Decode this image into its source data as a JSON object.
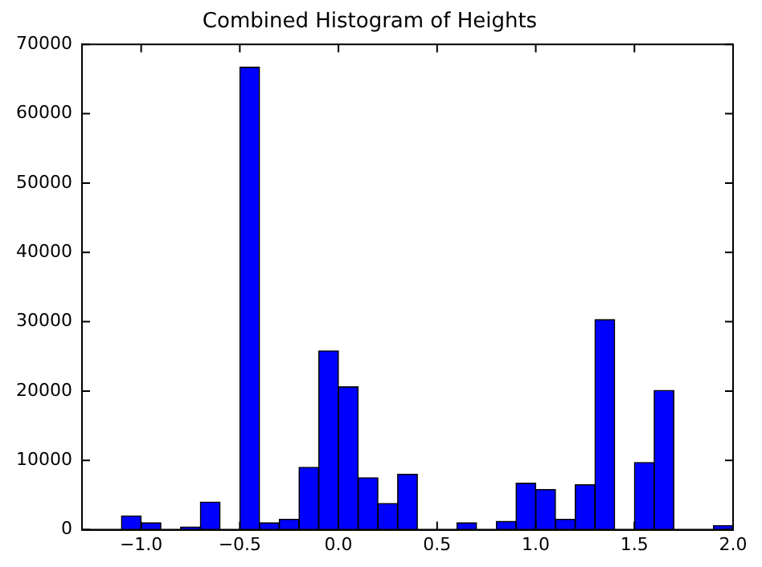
{
  "chart_data": {
    "type": "histogram",
    "title": "Combined Histogram of Heights",
    "bins": [
      -1.1,
      -1.0,
      -0.9,
      -0.8,
      -0.7,
      -0.6,
      -0.5,
      -0.4,
      -0.3,
      -0.2,
      -0.1,
      0.0,
      0.1,
      0.2,
      0.3,
      0.4,
      0.5,
      0.6,
      0.7,
      0.8,
      0.9,
      1.0,
      1.1,
      1.2,
      1.3,
      1.4,
      1.5,
      1.6,
      1.7,
      1.8,
      1.9,
      2.0
    ],
    "values": [
      2000,
      1000,
      0,
      400,
      4000,
      0,
      66700,
      1000,
      1500,
      9000,
      25800,
      20600,
      7500,
      3800,
      8000,
      0,
      0,
      1000,
      0,
      1200,
      6700,
      5800,
      1500,
      6500,
      30300,
      0,
      9700,
      20100,
      0,
      0,
      600
    ],
    "color": "#0000ff",
    "xlim": [
      -1.3,
      2.0
    ],
    "xticks": [
      {
        "value": -1.0,
        "label": "−1.0"
      },
      {
        "value": -0.5,
        "label": "−0.5"
      },
      {
        "value": 0,
        "label": "0.0"
      },
      {
        "value": 0.5,
        "label": "0.5"
      },
      {
        "value": 1.0,
        "label": "1.0"
      },
      {
        "value": 1.5,
        "label": "1.5"
      },
      {
        "value": 2.0,
        "label": "2.0"
      }
    ],
    "ylim": [
      0,
      70000
    ],
    "yticks": [
      0,
      10000,
      20000,
      30000,
      40000,
      50000,
      60000,
      70000
    ],
    "grid": false,
    "legend": false
  }
}
